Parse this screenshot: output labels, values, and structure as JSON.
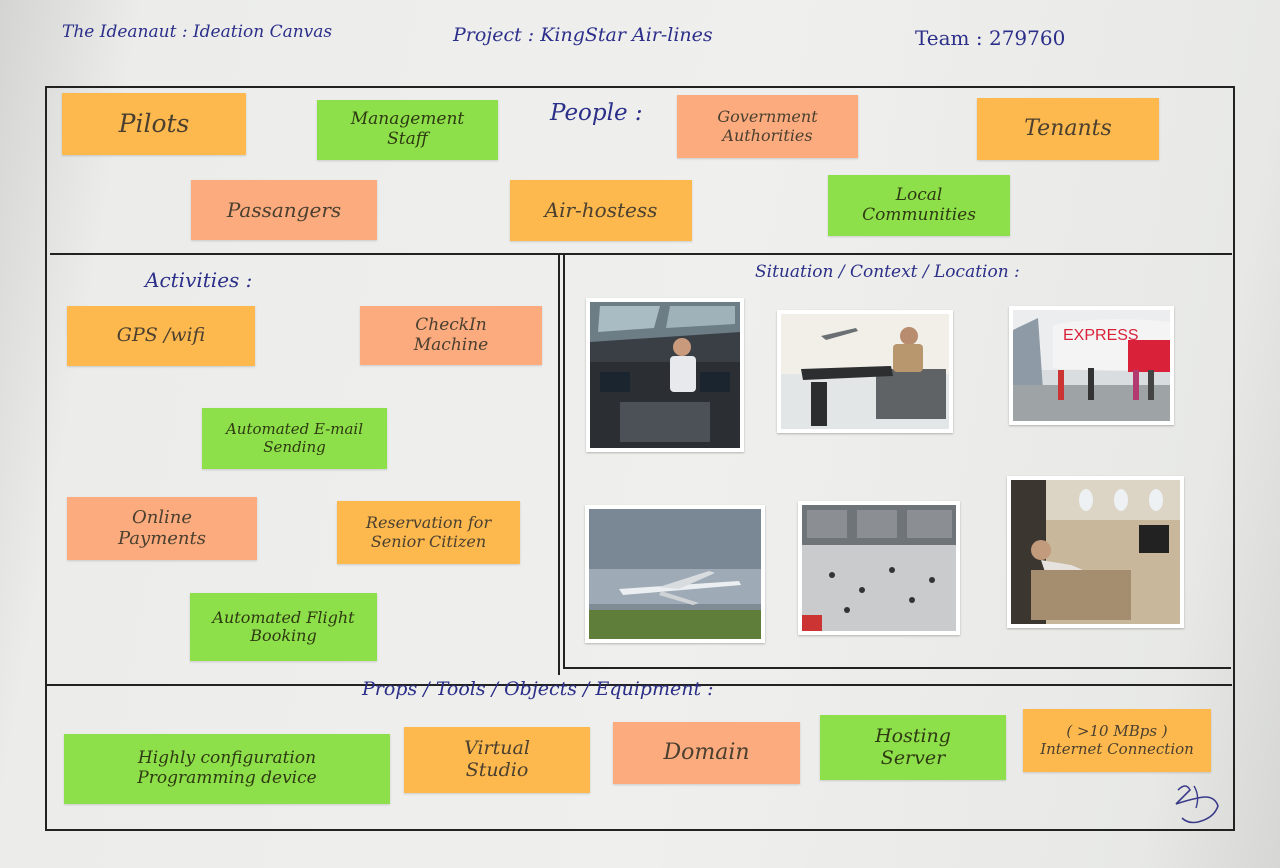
{
  "header": {
    "canvas_title": "The Ideanaut : Ideation Canvas",
    "project": "Project : KingStar Air-lines",
    "team": "Team : 279760"
  },
  "colors": {
    "orange": "#fdb94e",
    "salmon": "#fcab7e",
    "green": "#8ee04a",
    "ink": "#2b2f88",
    "border": "#222222"
  },
  "people": {
    "label": "People :",
    "notes": [
      {
        "text": "Pilots",
        "color": "orange"
      },
      {
        "text": "Management\nStaff",
        "color": "green"
      },
      {
        "text": "Government\nAuthorities",
        "color": "salmon"
      },
      {
        "text": "Tenants",
        "color": "orange"
      },
      {
        "text": "Passangers",
        "color": "salmon"
      },
      {
        "text": "Air-hostess",
        "color": "orange"
      },
      {
        "text": "Local\nCommunities",
        "color": "green"
      }
    ]
  },
  "activities": {
    "label": "Activities :",
    "notes": [
      {
        "text": "GPS /wifi",
        "color": "orange"
      },
      {
        "text": "CheckIn\nMachine",
        "color": "salmon"
      },
      {
        "text": "Automated E-mail\nSending",
        "color": "green"
      },
      {
        "text": "Online\nPayments",
        "color": "salmon"
      },
      {
        "text": "Reservation for\nSenior Citizen",
        "color": "orange"
      },
      {
        "text": "Automated Flight\nBooking",
        "color": "green"
      }
    ]
  },
  "situation": {
    "label": "Situation / Context / Location :",
    "photos": [
      {
        "subject": "pilot-in-cockpit"
      },
      {
        "subject": "traveller-waiting-at-airport"
      },
      {
        "subject": "passengers-boarding-airasia-express",
        "caption": "EXPRESS"
      },
      {
        "subject": "airplane-taking-off"
      },
      {
        "subject": "airport-terminal-hall"
      },
      {
        "subject": "business-class-seat"
      }
    ]
  },
  "props": {
    "label": "Props / Tools / Objects / Equipment :",
    "notes": [
      {
        "text": "Highly configuration\nProgramming device",
        "color": "green"
      },
      {
        "text": "Virtual\nStudio",
        "color": "orange"
      },
      {
        "text": "Domain",
        "color": "salmon"
      },
      {
        "text": "Hosting\nServer",
        "color": "green"
      },
      {
        "text": "( >10 MBps )\nInternet Connection",
        "color": "orange"
      }
    ]
  }
}
